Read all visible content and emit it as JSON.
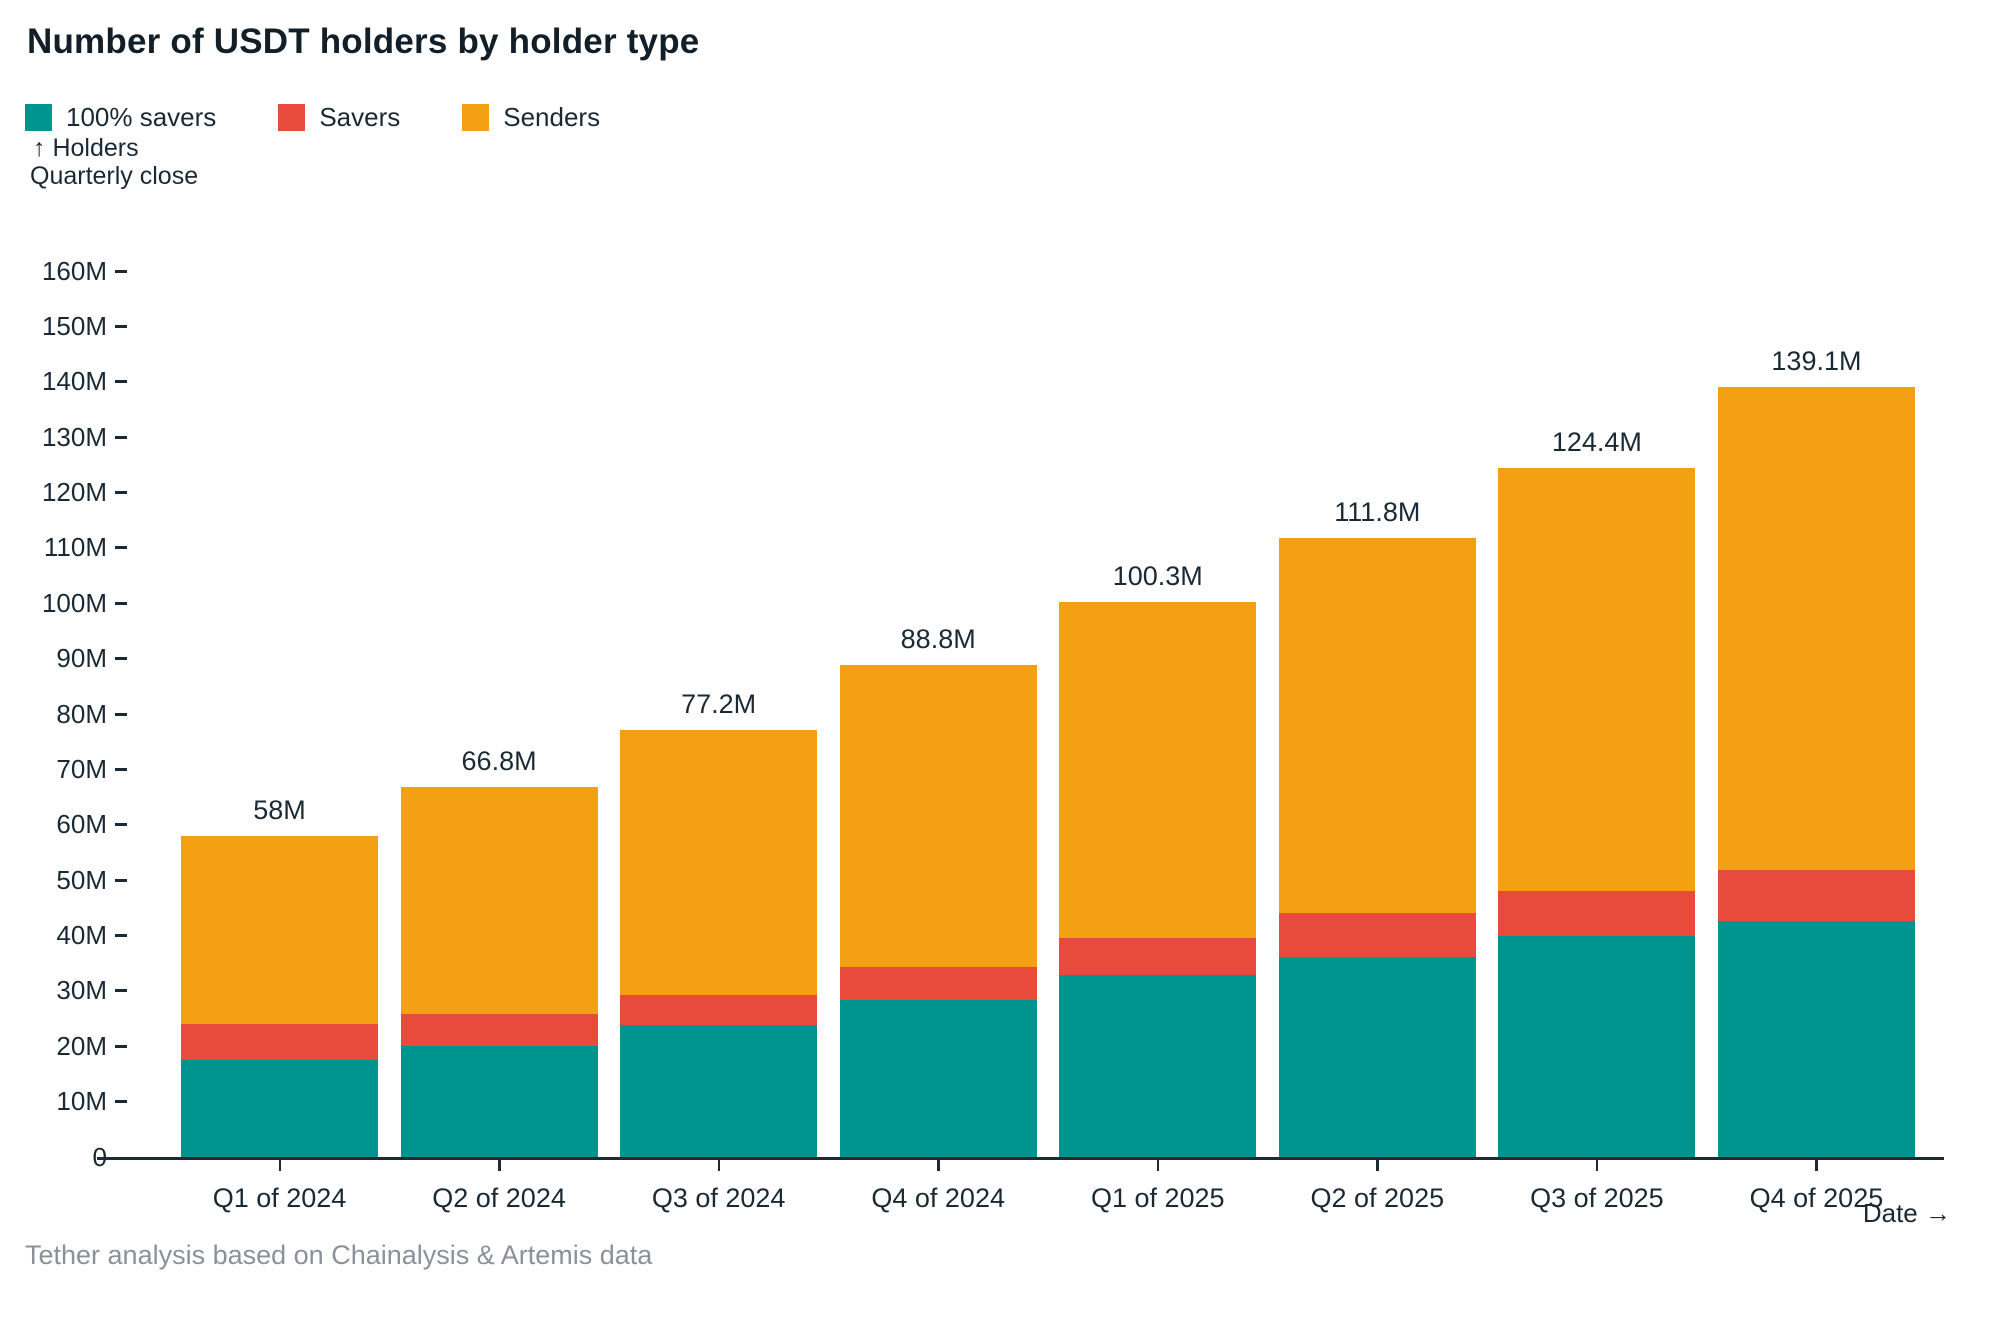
{
  "title": "Number of USDT holders by holder type",
  "y_axis_title": {
    "line1": "↑ Holders",
    "line2": "Quarterly close"
  },
  "x_axis_title": "Date →",
  "footer": "Tether analysis based on Chainalysis & Artemis data",
  "chart_data": {
    "type": "bar",
    "stacked": true,
    "title": "Number of USDT holders by holder type",
    "xlabel": "Date",
    "ylabel": "Holders, quarterly close",
    "ylim": [
      0,
      160
    ],
    "grid": false,
    "legend_position": "top-left",
    "categories": [
      "Q1 of 2024",
      "Q2 of 2024",
      "Q3 of 2024",
      "Q4 of 2024",
      "Q1 of 2025",
      "Q2 of 2025",
      "Q3 of 2025",
      "Q4 of 2025"
    ],
    "series": [
      {
        "name": "100% savers",
        "color": "#00948F",
        "values": [
          17.5,
          20.1,
          23.9,
          28.4,
          32.8,
          36.2,
          39.9,
          42.7
        ]
      },
      {
        "name": "Savers",
        "color": "#E84B3B",
        "values": [
          6.5,
          5.7,
          5.3,
          6.0,
          6.8,
          7.9,
          8.2,
          9.2
        ]
      },
      {
        "name": "Senders",
        "color": "#F3A013",
        "values": [
          34.0,
          41.0,
          48.0,
          54.4,
          60.7,
          67.7,
          76.3,
          87.2
        ]
      }
    ],
    "totals": [
      58,
      66.8,
      77.2,
      88.8,
      100.3,
      111.8,
      124.4,
      139.1
    ],
    "total_labels": [
      "58M",
      "66.8M",
      "77.2M",
      "88.8M",
      "100.3M",
      "111.8M",
      "124.4M",
      "139.1M"
    ],
    "yticks": [
      {
        "label": "0",
        "value": 0
      },
      {
        "label": "10M",
        "value": 10
      },
      {
        "label": "20M",
        "value": 20
      },
      {
        "label": "30M",
        "value": 30
      },
      {
        "label": "40M",
        "value": 40
      },
      {
        "label": "50M",
        "value": 50
      },
      {
        "label": "60M",
        "value": 60
      },
      {
        "label": "70M",
        "value": 70
      },
      {
        "label": "80M",
        "value": 80
      },
      {
        "label": "90M",
        "value": 90
      },
      {
        "label": "100M",
        "value": 100
      },
      {
        "label": "110M",
        "value": 110
      },
      {
        "label": "120M",
        "value": 120
      },
      {
        "label": "130M",
        "value": 130
      },
      {
        "label": "140M",
        "value": 140
      },
      {
        "label": "150M",
        "value": 150
      },
      {
        "label": "160M",
        "value": 160
      }
    ],
    "text_color": "#1B2935",
    "title_color": "#121E28",
    "axis_color": "#1E2A35",
    "footer_color": "#8A9199"
  }
}
